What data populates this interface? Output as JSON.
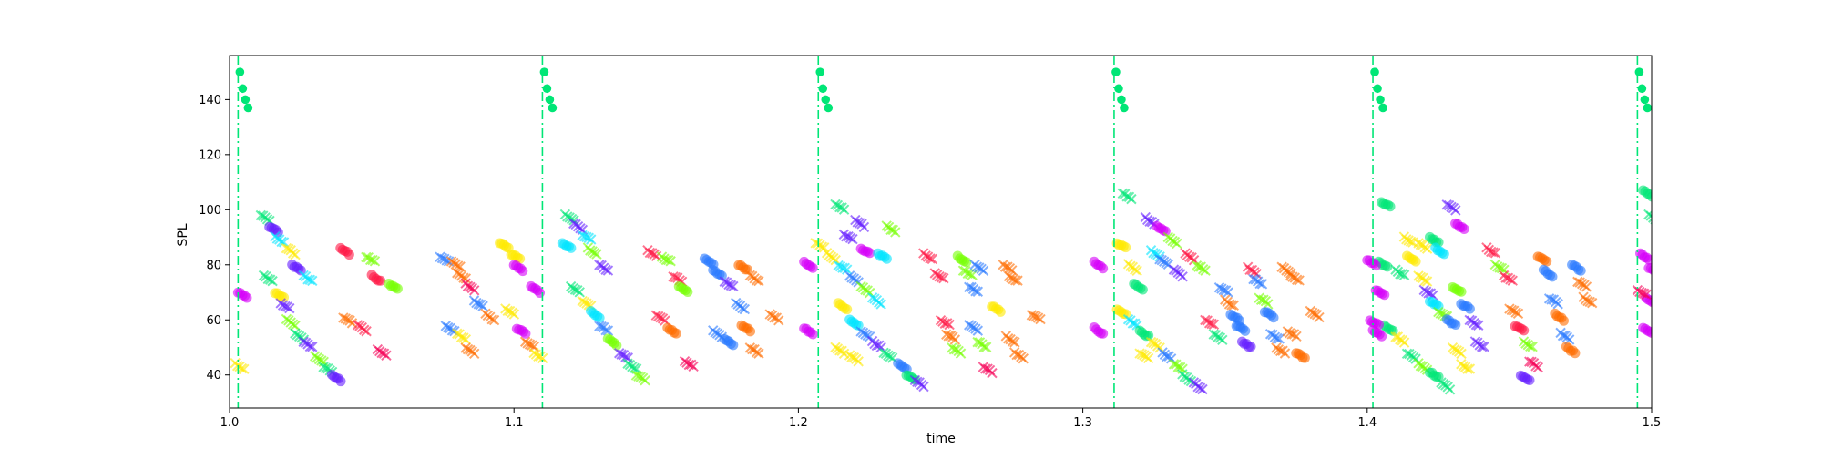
{
  "chart_data": {
    "type": "scatter",
    "title": "",
    "xlabel": "time",
    "ylabel": "SPL",
    "xlim": [
      1.0,
      1.5
    ],
    "ylim": [
      28,
      156
    ],
    "xticks": [
      1.0,
      1.1,
      1.2,
      1.3,
      1.4,
      1.5
    ],
    "xtick_labels": [
      "1.0",
      "1.1",
      "1.2",
      "1.3",
      "1.4",
      "1.5"
    ],
    "yticks": [
      40,
      60,
      80,
      100,
      120,
      140
    ],
    "ytick_labels": [
      "40",
      "60",
      "80",
      "100",
      "120",
      "140"
    ],
    "grid": false,
    "legend": "none",
    "vlines": {
      "x": [
        1.003,
        1.11,
        1.207,
        1.311,
        1.402,
        1.495
      ],
      "color": "#00e676",
      "style": "dash-dot"
    },
    "onset_markers": {
      "marker": "circle",
      "color": "#00e676",
      "y": [
        150,
        144,
        140,
        137
      ]
    },
    "note_palette": [
      "#ff1744",
      "#ff6d00",
      "#ffea00",
      "#76ff03",
      "#00e676",
      "#00e5ff",
      "#2979ff",
      "#651fff",
      "#d500f9",
      "#f50057"
    ],
    "notes": [
      {
        "x": 1.011,
        "y": 98,
        "c": 4
      },
      {
        "x": 1.014,
        "y": 94,
        "c": 7
      },
      {
        "x": 1.016,
        "y": 90,
        "c": 5
      },
      {
        "x": 1.02,
        "y": 86,
        "c": 2
      },
      {
        "x": 1.022,
        "y": 80,
        "c": 7
      },
      {
        "x": 1.026,
        "y": 76,
        "c": 5
      },
      {
        "x": 1.012,
        "y": 76,
        "c": 4
      },
      {
        "x": 1.016,
        "y": 70,
        "c": 2
      },
      {
        "x": 1.018,
        "y": 66,
        "c": 7
      },
      {
        "x": 1.02,
        "y": 60,
        "c": 3
      },
      {
        "x": 1.023,
        "y": 55,
        "c": 4
      },
      {
        "x": 1.026,
        "y": 52,
        "c": 7
      },
      {
        "x": 1.03,
        "y": 47,
        "c": 3
      },
      {
        "x": 1.033,
        "y": 43,
        "c": 4
      },
      {
        "x": 1.036,
        "y": 40,
        "c": 7
      },
      {
        "x": 1.039,
        "y": 86,
        "c": 0
      },
      {
        "x": 1.04,
        "y": 61,
        "c": 1
      },
      {
        "x": 1.045,
        "y": 58,
        "c": 0
      },
      {
        "x": 1.048,
        "y": 83,
        "c": 3
      },
      {
        "x": 1.05,
        "y": 76,
        "c": 0
      },
      {
        "x": 1.052,
        "y": 49,
        "c": 9
      },
      {
        "x": 1.056,
        "y": 73,
        "c": 3
      },
      {
        "x": 1.003,
        "y": 70,
        "c": 8
      },
      {
        "x": 1.002,
        "y": 44,
        "c": 2
      },
      {
        "x": 1.074,
        "y": 83,
        "c": 6
      },
      {
        "x": 1.078,
        "y": 81,
        "c": 1
      },
      {
        "x": 1.08,
        "y": 77,
        "c": 1
      },
      {
        "x": 1.083,
        "y": 73,
        "c": 9
      },
      {
        "x": 1.086,
        "y": 67,
        "c": 6
      },
      {
        "x": 1.076,
        "y": 58,
        "c": 6
      },
      {
        "x": 1.08,
        "y": 55,
        "c": 2
      },
      {
        "x": 1.083,
        "y": 50,
        "c": 1
      },
      {
        "x": 1.09,
        "y": 62,
        "c": 1
      },
      {
        "x": 1.095,
        "y": 88,
        "c": 2
      },
      {
        "x": 1.099,
        "y": 84,
        "c": 2
      },
      {
        "x": 1.1,
        "y": 80,
        "c": 8
      },
      {
        "x": 1.097,
        "y": 64,
        "c": 2
      },
      {
        "x": 1.101,
        "y": 57,
        "c": 8
      },
      {
        "x": 1.104,
        "y": 52,
        "c": 1
      },
      {
        "x": 1.107,
        "y": 48,
        "c": 2
      },
      {
        "x": 1.106,
        "y": 72,
        "c": 8
      },
      {
        "x": 1.118,
        "y": 98,
        "c": 4
      },
      {
        "x": 1.121,
        "y": 95,
        "c": 7
      },
      {
        "x": 1.124,
        "y": 91,
        "c": 5
      },
      {
        "x": 1.117,
        "y": 88,
        "c": 5
      },
      {
        "x": 1.126,
        "y": 86,
        "c": 3
      },
      {
        "x": 1.13,
        "y": 80,
        "c": 7
      },
      {
        "x": 1.12,
        "y": 72,
        "c": 4
      },
      {
        "x": 1.124,
        "y": 67,
        "c": 2
      },
      {
        "x": 1.127,
        "y": 63,
        "c": 5
      },
      {
        "x": 1.13,
        "y": 58,
        "c": 6
      },
      {
        "x": 1.133,
        "y": 53,
        "c": 3
      },
      {
        "x": 1.137,
        "y": 48,
        "c": 7
      },
      {
        "x": 1.14,
        "y": 44,
        "c": 4
      },
      {
        "x": 1.143,
        "y": 40,
        "c": 3
      },
      {
        "x": 1.147,
        "y": 85,
        "c": 0
      },
      {
        "x": 1.152,
        "y": 83,
        "c": 3
      },
      {
        "x": 1.15,
        "y": 62,
        "c": 0
      },
      {
        "x": 1.154,
        "y": 57,
        "c": 1
      },
      {
        "x": 1.156,
        "y": 76,
        "c": 0
      },
      {
        "x": 1.158,
        "y": 72,
        "c": 3
      },
      {
        "x": 1.16,
        "y": 45,
        "c": 9
      },
      {
        "x": 1.167,
        "y": 82,
        "c": 6
      },
      {
        "x": 1.17,
        "y": 78,
        "c": 6
      },
      {
        "x": 1.174,
        "y": 74,
        "c": 7
      },
      {
        "x": 1.17,
        "y": 56,
        "c": 6
      },
      {
        "x": 1.174,
        "y": 53,
        "c": 6
      },
      {
        "x": 1.179,
        "y": 80,
        "c": 1
      },
      {
        "x": 1.183,
        "y": 76,
        "c": 1
      },
      {
        "x": 1.18,
        "y": 58,
        "c": 1
      },
      {
        "x": 1.183,
        "y": 50,
        "c": 1
      },
      {
        "x": 1.178,
        "y": 66,
        "c": 6
      },
      {
        "x": 1.19,
        "y": 62,
        "c": 1
      },
      {
        "x": 1.213,
        "y": 102,
        "c": 4
      },
      {
        "x": 1.22,
        "y": 96,
        "c": 7
      },
      {
        "x": 1.231,
        "y": 94,
        "c": 3
      },
      {
        "x": 1.216,
        "y": 91,
        "c": 7
      },
      {
        "x": 1.222,
        "y": 86,
        "c": 8
      },
      {
        "x": 1.228,
        "y": 84,
        "c": 5
      },
      {
        "x": 1.206,
        "y": 88,
        "c": 2
      },
      {
        "x": 1.21,
        "y": 84,
        "c": 2
      },
      {
        "x": 1.214,
        "y": 80,
        "c": 5
      },
      {
        "x": 1.218,
        "y": 76,
        "c": 6
      },
      {
        "x": 1.222,
        "y": 72,
        "c": 3
      },
      {
        "x": 1.226,
        "y": 68,
        "c": 5
      },
      {
        "x": 1.214,
        "y": 66,
        "c": 2
      },
      {
        "x": 1.218,
        "y": 60,
        "c": 5
      },
      {
        "x": 1.222,
        "y": 56,
        "c": 6
      },
      {
        "x": 1.226,
        "y": 52,
        "c": 7
      },
      {
        "x": 1.23,
        "y": 48,
        "c": 4
      },
      {
        "x": 1.235,
        "y": 44,
        "c": 6
      },
      {
        "x": 1.238,
        "y": 40,
        "c": 4
      },
      {
        "x": 1.241,
        "y": 38,
        "c": 7
      },
      {
        "x": 1.213,
        "y": 50,
        "c": 2
      },
      {
        "x": 1.218,
        "y": 47,
        "c": 2
      },
      {
        "x": 1.244,
        "y": 84,
        "c": 0
      },
      {
        "x": 1.248,
        "y": 77,
        "c": 0
      },
      {
        "x": 1.25,
        "y": 60,
        "c": 0
      },
      {
        "x": 1.252,
        "y": 55,
        "c": 1
      },
      {
        "x": 1.254,
        "y": 50,
        "c": 3
      },
      {
        "x": 1.256,
        "y": 83,
        "c": 3
      },
      {
        "x": 1.258,
        "y": 78,
        "c": 3
      },
      {
        "x": 1.26,
        "y": 72,
        "c": 6
      },
      {
        "x": 1.262,
        "y": 80,
        "c": 6
      },
      {
        "x": 1.26,
        "y": 58,
        "c": 6
      },
      {
        "x": 1.263,
        "y": 52,
        "c": 3
      },
      {
        "x": 1.265,
        "y": 43,
        "c": 9
      },
      {
        "x": 1.268,
        "y": 65,
        "c": 2
      },
      {
        "x": 1.272,
        "y": 80,
        "c": 1
      },
      {
        "x": 1.274,
        "y": 76,
        "c": 1
      },
      {
        "x": 1.273,
        "y": 54,
        "c": 1
      },
      {
        "x": 1.276,
        "y": 48,
        "c": 1
      },
      {
        "x": 1.282,
        "y": 62,
        "c": 1
      },
      {
        "x": 1.202,
        "y": 81,
        "c": 8
      },
      {
        "x": 1.202,
        "y": 57,
        "c": 8
      },
      {
        "x": 1.314,
        "y": 106,
        "c": 4
      },
      {
        "x": 1.322,
        "y": 97,
        "c": 7
      },
      {
        "x": 1.326,
        "y": 94,
        "c": 8
      },
      {
        "x": 1.33,
        "y": 90,
        "c": 3
      },
      {
        "x": 1.312,
        "y": 88,
        "c": 2
      },
      {
        "x": 1.316,
        "y": 80,
        "c": 2
      },
      {
        "x": 1.318,
        "y": 73,
        "c": 4
      },
      {
        "x": 1.324,
        "y": 85,
        "c": 5
      },
      {
        "x": 1.327,
        "y": 82,
        "c": 6
      },
      {
        "x": 1.332,
        "y": 78,
        "c": 7
      },
      {
        "x": 1.336,
        "y": 84,
        "c": 0
      },
      {
        "x": 1.34,
        "y": 80,
        "c": 3
      },
      {
        "x": 1.312,
        "y": 64,
        "c": 2
      },
      {
        "x": 1.316,
        "y": 60,
        "c": 5
      },
      {
        "x": 1.32,
        "y": 56,
        "c": 4
      },
      {
        "x": 1.324,
        "y": 52,
        "c": 2
      },
      {
        "x": 1.328,
        "y": 48,
        "c": 6
      },
      {
        "x": 1.332,
        "y": 44,
        "c": 3
      },
      {
        "x": 1.335,
        "y": 40,
        "c": 4
      },
      {
        "x": 1.339,
        "y": 37,
        "c": 7
      },
      {
        "x": 1.32,
        "y": 48,
        "c": 2
      },
      {
        "x": 1.343,
        "y": 60,
        "c": 0
      },
      {
        "x": 1.346,
        "y": 55,
        "c": 4
      },
      {
        "x": 1.348,
        "y": 72,
        "c": 6
      },
      {
        "x": 1.35,
        "y": 67,
        "c": 1
      },
      {
        "x": 1.352,
        "y": 62,
        "c": 6
      },
      {
        "x": 1.354,
        "y": 58,
        "c": 6
      },
      {
        "x": 1.356,
        "y": 52,
        "c": 7
      },
      {
        "x": 1.358,
        "y": 79,
        "c": 0
      },
      {
        "x": 1.36,
        "y": 75,
        "c": 6
      },
      {
        "x": 1.362,
        "y": 68,
        "c": 3
      },
      {
        "x": 1.364,
        "y": 63,
        "c": 6
      },
      {
        "x": 1.366,
        "y": 55,
        "c": 6
      },
      {
        "x": 1.368,
        "y": 50,
        "c": 1
      },
      {
        "x": 1.37,
        "y": 79,
        "c": 1
      },
      {
        "x": 1.373,
        "y": 76,
        "c": 1
      },
      {
        "x": 1.372,
        "y": 56,
        "c": 1
      },
      {
        "x": 1.375,
        "y": 48,
        "c": 1
      },
      {
        "x": 1.38,
        "y": 63,
        "c": 1
      },
      {
        "x": 1.304,
        "y": 81,
        "c": 8
      },
      {
        "x": 1.304,
        "y": 57,
        "c": 8
      },
      {
        "x": 1.405,
        "y": 103,
        "c": 4
      },
      {
        "x": 1.413,
        "y": 90,
        "c": 2
      },
      {
        "x": 1.418,
        "y": 88,
        "c": 2
      },
      {
        "x": 1.422,
        "y": 90,
        "c": 4
      },
      {
        "x": 1.428,
        "y": 102,
        "c": 7
      },
      {
        "x": 1.431,
        "y": 95,
        "c": 8
      },
      {
        "x": 1.424,
        "y": 86,
        "c": 5
      },
      {
        "x": 1.404,
        "y": 81,
        "c": 4
      },
      {
        "x": 1.41,
        "y": 78,
        "c": 4
      },
      {
        "x": 1.414,
        "y": 83,
        "c": 2
      },
      {
        "x": 1.418,
        "y": 76,
        "c": 2
      },
      {
        "x": 1.42,
        "y": 71,
        "c": 7
      },
      {
        "x": 1.422,
        "y": 67,
        "c": 5
      },
      {
        "x": 1.425,
        "y": 63,
        "c": 3
      },
      {
        "x": 1.428,
        "y": 60,
        "c": 6
      },
      {
        "x": 1.43,
        "y": 72,
        "c": 3
      },
      {
        "x": 1.433,
        "y": 66,
        "c": 6
      },
      {
        "x": 1.436,
        "y": 60,
        "c": 7
      },
      {
        "x": 1.406,
        "y": 58,
        "c": 4
      },
      {
        "x": 1.41,
        "y": 54,
        "c": 2
      },
      {
        "x": 1.414,
        "y": 48,
        "c": 4
      },
      {
        "x": 1.418,
        "y": 44,
        "c": 3
      },
      {
        "x": 1.422,
        "y": 41,
        "c": 4
      },
      {
        "x": 1.426,
        "y": 37,
        "c": 4
      },
      {
        "x": 1.43,
        "y": 50,
        "c": 2
      },
      {
        "x": 1.433,
        "y": 44,
        "c": 2
      },
      {
        "x": 1.438,
        "y": 52,
        "c": 7
      },
      {
        "x": 1.442,
        "y": 86,
        "c": 0
      },
      {
        "x": 1.445,
        "y": 80,
        "c": 3
      },
      {
        "x": 1.448,
        "y": 76,
        "c": 0
      },
      {
        "x": 1.45,
        "y": 64,
        "c": 1
      },
      {
        "x": 1.452,
        "y": 58,
        "c": 0
      },
      {
        "x": 1.455,
        "y": 52,
        "c": 3
      },
      {
        "x": 1.457,
        "y": 45,
        "c": 9
      },
      {
        "x": 1.46,
        "y": 83,
        "c": 1
      },
      {
        "x": 1.462,
        "y": 78,
        "c": 6
      },
      {
        "x": 1.464,
        "y": 68,
        "c": 6
      },
      {
        "x": 1.466,
        "y": 62,
        "c": 1
      },
      {
        "x": 1.468,
        "y": 55,
        "c": 6
      },
      {
        "x": 1.47,
        "y": 50,
        "c": 1
      },
      {
        "x": 1.472,
        "y": 80,
        "c": 6
      },
      {
        "x": 1.474,
        "y": 74,
        "c": 1
      },
      {
        "x": 1.476,
        "y": 68,
        "c": 1
      },
      {
        "x": 1.454,
        "y": 40,
        "c": 7
      },
      {
        "x": 1.403,
        "y": 71,
        "c": 8
      },
      {
        "x": 1.402,
        "y": 56,
        "c": 8
      },
      {
        "x": 1.401,
        "y": 60,
        "c": 8
      },
      {
        "x": 1.4,
        "y": 82,
        "c": 8
      },
      {
        "x": 1.497,
        "y": 107,
        "c": 4
      },
      {
        "x": 1.499,
        "y": 98,
        "c": 4
      },
      {
        "x": 1.496,
        "y": 84,
        "c": 8
      },
      {
        "x": 1.497,
        "y": 57,
        "c": 8
      },
      {
        "x": 1.498,
        "y": 68,
        "c": 8
      },
      {
        "x": 1.499,
        "y": 79,
        "c": 8
      },
      {
        "x": 1.495,
        "y": 71,
        "c": 9
      }
    ]
  }
}
